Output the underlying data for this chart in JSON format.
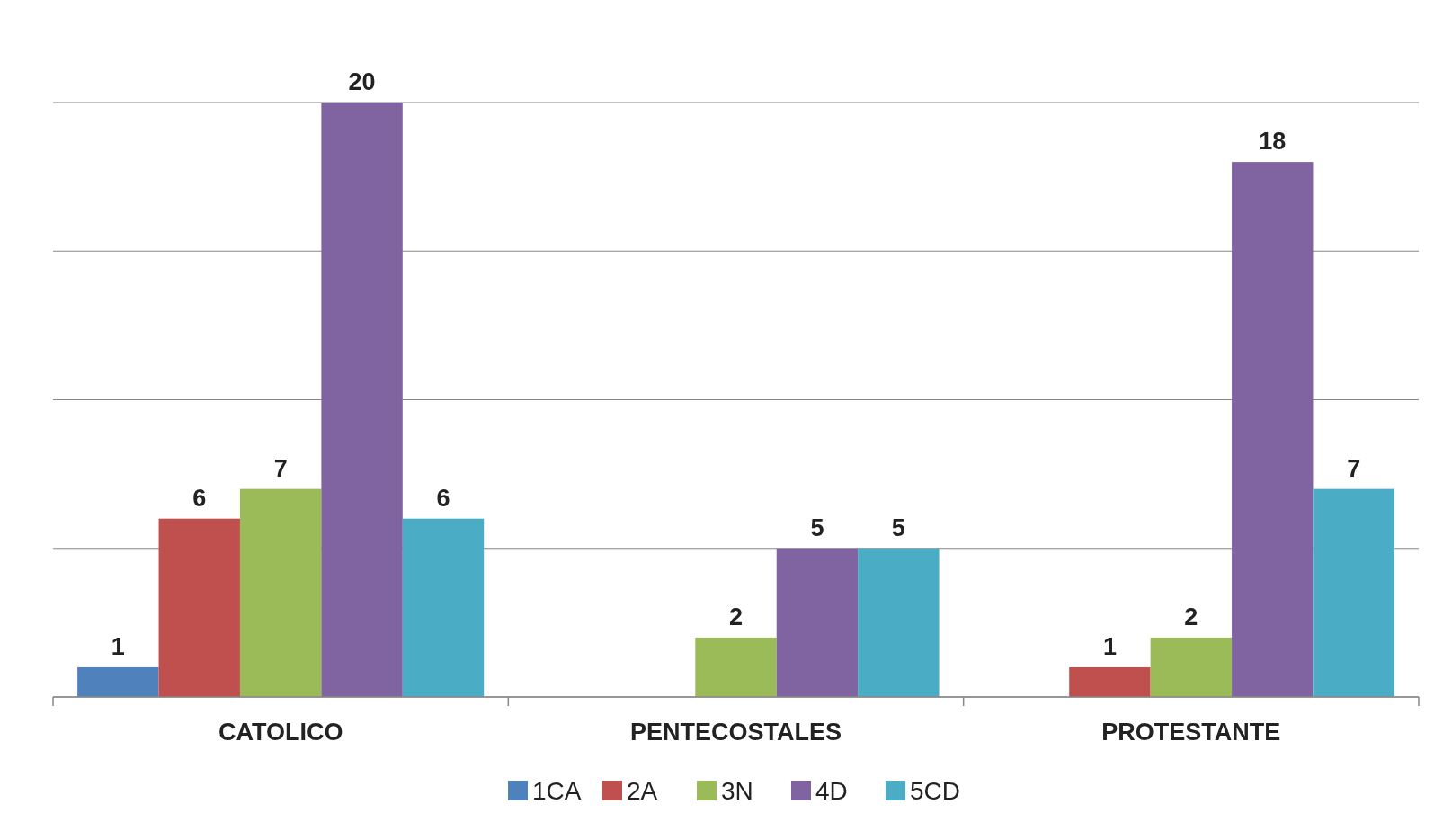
{
  "chart_data": {
    "type": "bar",
    "categories": [
      "CATOLICO",
      "PENTECOSTALES",
      "PROTESTANTE"
    ],
    "series": [
      {
        "name": "1CA",
        "color": "#4f81bd",
        "values": [
          1,
          null,
          null
        ]
      },
      {
        "name": "2A",
        "color": "#c0504d",
        "values": [
          6,
          null,
          1
        ]
      },
      {
        "name": "3N",
        "color": "#9bbb59",
        "values": [
          7,
          2,
          2
        ]
      },
      {
        "name": "4D",
        "color": "#8064a2",
        "values": [
          20,
          5,
          18
        ]
      },
      {
        "name": "5CD",
        "color": "#4bacc6",
        "values": [
          6,
          5,
          7
        ]
      }
    ],
    "ylim": [
      0,
      20
    ],
    "yticks": [
      {
        "value": 0,
        "label": null
      },
      {
        "value": 5,
        "label": null
      },
      {
        "value": 10,
        "label": null
      },
      {
        "value": 15,
        "label": null
      },
      {
        "value": 20,
        "label": null
      }
    ],
    "grid": "y",
    "data_labels": true,
    "legend": "bottom",
    "tick_labels": "x"
  }
}
